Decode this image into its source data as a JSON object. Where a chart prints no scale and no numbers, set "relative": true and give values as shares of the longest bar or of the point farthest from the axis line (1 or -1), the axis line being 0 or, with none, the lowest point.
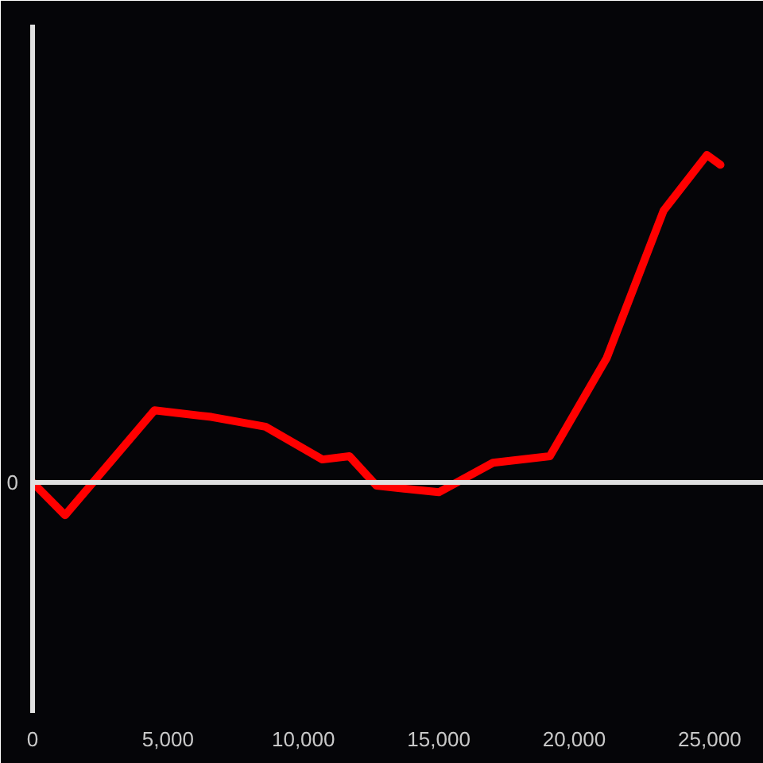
{
  "chart_data": {
    "type": "line",
    "relative": true,
    "x": [
      0,
      1200,
      4500,
      6600,
      8600,
      10700,
      11700,
      12700,
      15000,
      17000,
      19100,
      21200,
      23300,
      24900,
      25400
    ],
    "series": [
      {
        "color": "#ff0000",
        "values": [
          0,
          -0.1,
          0.22,
          0.2,
          0.17,
          0.07,
          0.08,
          -0.01,
          -0.03,
          0.06,
          0.08,
          0.38,
          0.83,
          1,
          0.97
        ]
      }
    ],
    "xlim": [
      0,
      27000
    ],
    "xticks": [
      0,
      {
        "value": 5000,
        "label": "5,000"
      },
      {
        "value": 10000,
        "label": "10,000"
      },
      {
        "value": 15000,
        "label": "15,000"
      },
      {
        "value": 20000,
        "label": "20,000"
      },
      {
        "value": 25000,
        "label": "25,000"
      }
    ],
    "ref_lines": [
      {
        "axis": "y",
        "value": 0,
        "label": "0",
        "color": "#e0e0e0"
      }
    ]
  }
}
